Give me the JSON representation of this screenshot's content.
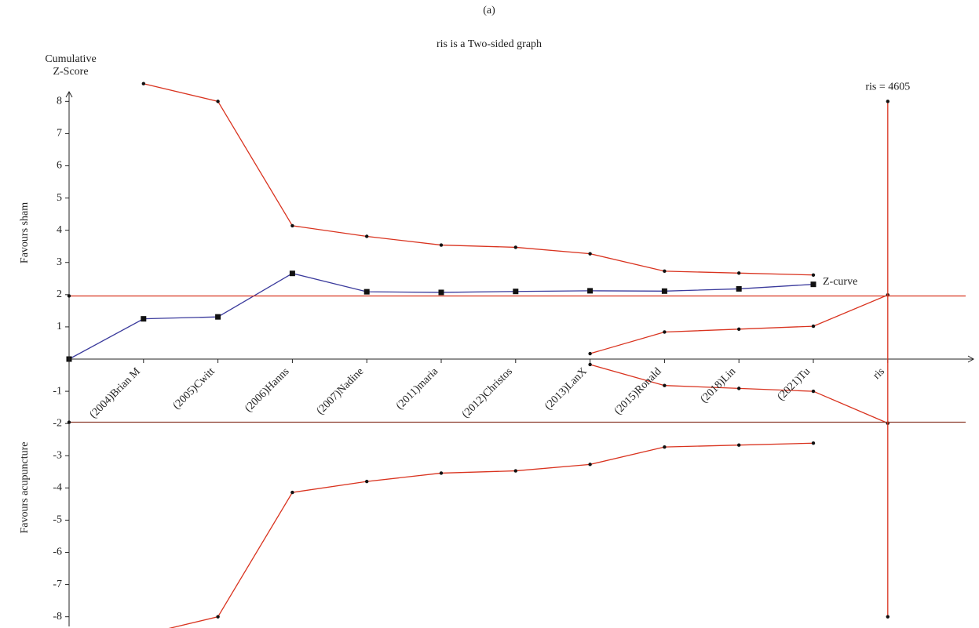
{
  "chart_data": {
    "type": "line",
    "panel_label": "(a)",
    "title": "ris is a Two-sided graph",
    "y_axis_label": [
      "Cumulative",
      "Z-Score"
    ],
    "upper_region_label": "Favours sham",
    "lower_region_label": "Favours acupuncture",
    "categories": [
      null,
      "(2004)Brian M",
      "(2005)Cwitt",
      "(2006)Hanns",
      "(2007)Nadine",
      "(2011)maria",
      "(2012)Christos",
      "(2013)LanX",
      "(2015)Ronald",
      "(2018)Lin",
      "(2021)Tu",
      "ris"
    ],
    "ylim": [
      -8.3,
      8.3
    ],
    "yticks": [
      -8,
      -7,
      -6,
      -5,
      -4,
      -3,
      -2,
      -1,
      1,
      2,
      3,
      4,
      5,
      6,
      7,
      8
    ],
    "series": [
      {
        "name": "Z-curve",
        "color": "#3a3a9c",
        "marker": "square",
        "values": [
          0,
          1.25,
          1.31,
          2.66,
          2.09,
          2.07,
          2.1,
          2.12,
          2.11,
          2.18,
          2.32,
          null
        ]
      },
      {
        "color": "#d9331f",
        "marker": "dot",
        "values": [
          null,
          8.55,
          8.0,
          4.14,
          3.81,
          3.54,
          3.47,
          3.27,
          2.73,
          2.67,
          2.61,
          null
        ]
      },
      {
        "color": "#d9331f",
        "marker": "dot",
        "values": [
          null,
          -8.55,
          -8.0,
          -4.14,
          -3.8,
          -3.54,
          -3.47,
          -3.27,
          -2.73,
          -2.67,
          -2.61,
          null
        ]
      },
      {
        "color": "#d9331f",
        "marker": "dot",
        "values": [
          null,
          null,
          null,
          null,
          null,
          null,
          null,
          0.17,
          0.84,
          0.93,
          1.02,
          1.99
        ]
      },
      {
        "color": "#d9331f",
        "marker": "dot",
        "values": [
          null,
          null,
          null,
          null,
          null,
          null,
          null,
          -0.17,
          -0.82,
          -0.91,
          -1.0,
          -1.99
        ]
      }
    ],
    "hlines": [
      {
        "value": 1.96,
        "color": "#d9331f"
      },
      {
        "value": -1.96,
        "color": "#8b3a2a"
      }
    ],
    "ris": {
      "label": "ris = 4605",
      "color": "#d9331f",
      "values": [
        8,
        -8
      ]
    }
  }
}
